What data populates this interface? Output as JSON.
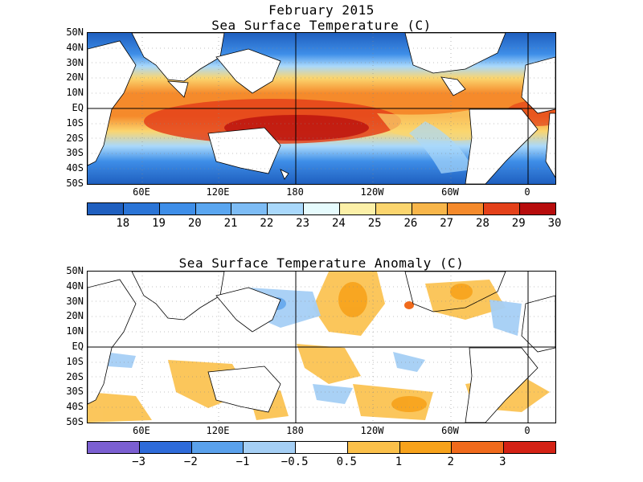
{
  "header": {
    "title": "February 2015"
  },
  "panel_top": {
    "title": "Sea Surface Temperature (C)",
    "lat_labels": [
      "50N",
      "40N",
      "30N",
      "20N",
      "10N",
      "EQ",
      "10S",
      "20S",
      "30S",
      "40S",
      "50S"
    ],
    "lon_labels": [
      "60E",
      "120E",
      "180",
      "120W",
      "60W",
      "0"
    ],
    "colorbar": {
      "colors": [
        "#1f5fbf",
        "#2a74d6",
        "#3e8ee8",
        "#5aa6f0",
        "#7dbcf5",
        "#a9d8fb",
        "#e6fbfd",
        "#fcf0a8",
        "#fbd56e",
        "#f8b64a",
        "#f58a2b",
        "#e4411a",
        "#b70c0c"
      ],
      "labels": [
        "18",
        "19",
        "20",
        "21",
        "22",
        "23",
        "24",
        "25",
        "26",
        "27",
        "28",
        "29",
        "30"
      ]
    }
  },
  "panel_bottom": {
    "title": "Sea Surface Temperature Anomaly (C)",
    "lat_labels": [
      "50N",
      "40N",
      "30N",
      "20N",
      "10N",
      "EQ",
      "10S",
      "20S",
      "30S",
      "40S",
      "50S"
    ],
    "lon_labels": [
      "60E",
      "120E",
      "180",
      "120W",
      "60W",
      "0"
    ],
    "colorbar": {
      "colors": [
        "#7b5fd1",
        "#2e6bd9",
        "#5aa1ec",
        "#a5cff5",
        "#ffffff",
        "#fbc04a",
        "#f7a21b",
        "#f06a1c",
        "#d42215"
      ],
      "labels": [
        "−3",
        "−2",
        "−1",
        "−0.5",
        "0.5",
        "1",
        "2",
        "3"
      ]
    }
  }
}
